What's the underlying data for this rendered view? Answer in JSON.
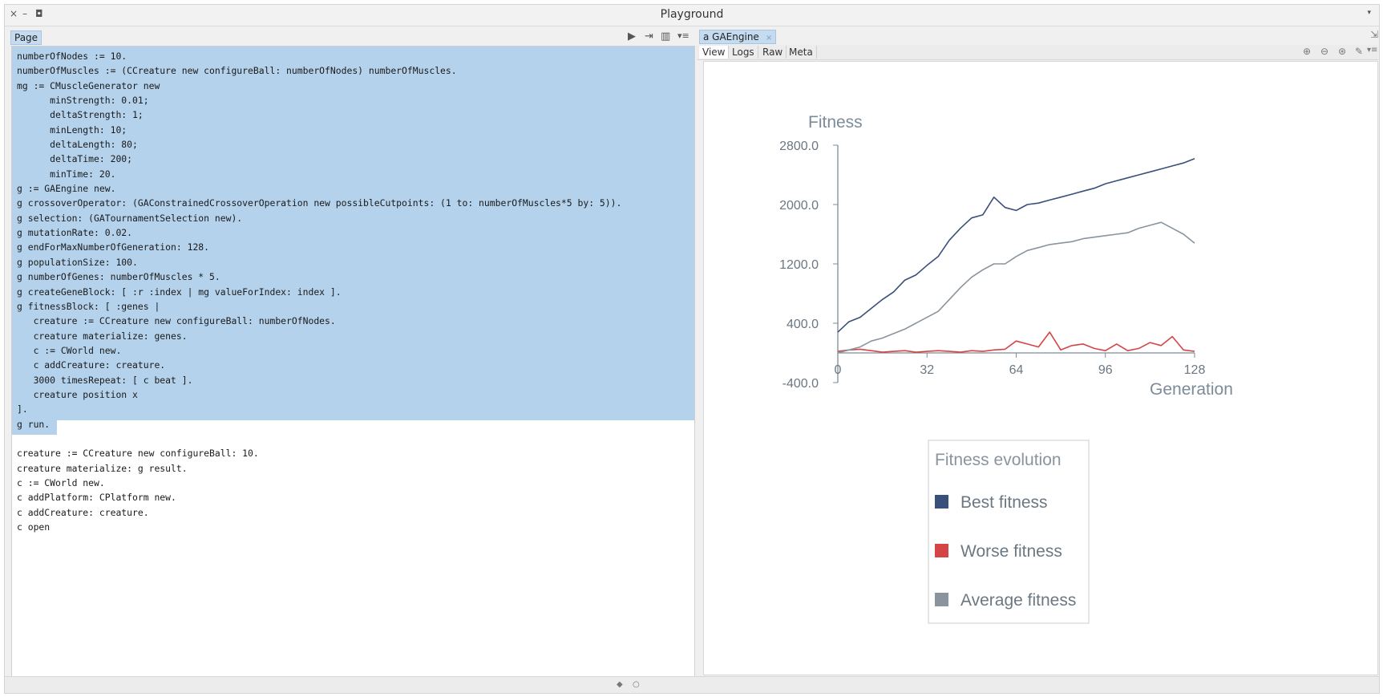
{
  "window": {
    "title": "Playground",
    "close": "×",
    "minimize": "–",
    "maximize": "◘",
    "menu": "▾"
  },
  "left": {
    "tab": "Page"
  },
  "toolbar": {
    "run": "▶",
    "doit": "⇥",
    "split": "▥",
    "menu": "▾≡"
  },
  "code": [
    "numberOfNodes := 10.",
    "numberOfMuscles := (CCreature new configureBall: numberOfNodes) numberOfMuscles.",
    "mg := CMuscleGenerator new",
    "      minStrength: 0.01;",
    "      deltaStrength: 1;",
    "      minLength: 10;",
    "      deltaLength: 80;",
    "      deltaTime: 200;",
    "      minTime: 20.",
    "g := GAEngine new.",
    "g crossoverOperator: (GAConstrainedCrossoverOperation new possibleCutpoints: (1 to: numberOfMuscles*5 by: 5)).",
    "g selection: (GATournamentSelection new).",
    "g mutationRate: 0.02.",
    "g endForMaxNumberOfGeneration: 128.",
    "g populationSize: 100.",
    "g numberOfGenes: numberOfMuscles * 5.",
    "g createGeneBlock: [ :r :index | mg valueForIndex: index ].",
    "g fitnessBlock: [ :genes |",
    "   creature := CCreature new configureBall: numberOfNodes.",
    "   creature materialize: genes.",
    "   c := CWorld new.",
    "   c addCreature: creature.",
    "   3000 timesRepeat: [ c beat ].",
    "   creature position x",
    "].",
    "g run.",
    "",
    "creature := CCreature new configureBall: 10.",
    "creature materialize: g result.",
    "c := CWorld new.",
    "c addPlatform: CPlatform new.",
    "c addCreature: creature.",
    "c open"
  ],
  "inspector": {
    "title": "a GAEngine",
    "close": "×",
    "tabs": [
      "View",
      "Logs",
      "Raw",
      "Meta"
    ],
    "icons": [
      "⊕",
      "⊖",
      "⊛",
      "✎",
      "▾≡"
    ],
    "corner_icon": "⇲"
  },
  "status": {
    "dot1": "◆",
    "dot2": "○"
  },
  "colors": {
    "best": "#3a4f7a",
    "worse": "#d64545",
    "average": "#8a949e",
    "selection": "#b4d2ec"
  },
  "chart_data": {
    "type": "line",
    "ylabel": "Fitness",
    "xlabel": "Generation",
    "xlim": [
      0,
      128
    ],
    "ylim": [
      -400,
      2800
    ],
    "xticks": [
      "0",
      "32",
      "64",
      "96",
      "128"
    ],
    "yticks": [
      "2800.0",
      "2000.0",
      "1200.0",
      "400.0",
      "-400.0"
    ],
    "x": [
      0,
      4,
      8,
      12,
      16,
      20,
      24,
      28,
      32,
      36,
      40,
      44,
      48,
      52,
      56,
      60,
      64,
      68,
      72,
      76,
      80,
      84,
      88,
      92,
      96,
      100,
      104,
      108,
      112,
      116,
      120,
      124,
      128
    ],
    "legend_title": "Fitness evolution",
    "series": [
      {
        "name": "Best fitness",
        "color": "#3a4f7a",
        "values": [
          280,
          420,
          480,
          600,
          720,
          820,
          980,
          1050,
          1180,
          1300,
          1520,
          1680,
          1820,
          1860,
          2100,
          1960,
          1920,
          2000,
          2020,
          2060,
          2100,
          2140,
          2180,
          2220,
          2280,
          2320,
          2360,
          2400,
          2440,
          2480,
          2520,
          2560,
          2620
        ]
      },
      {
        "name": "Worse fitness",
        "color": "#d64545",
        "values": [
          20,
          40,
          50,
          30,
          10,
          20,
          30,
          10,
          20,
          30,
          20,
          10,
          30,
          20,
          40,
          50,
          160,
          120,
          80,
          280,
          40,
          100,
          120,
          60,
          30,
          120,
          30,
          60,
          140,
          100,
          220,
          40,
          20
        ]
      },
      {
        "name": "Average fitness",
        "color": "#8a949e",
        "values": [
          0,
          40,
          80,
          160,
          200,
          260,
          320,
          400,
          480,
          560,
          720,
          880,
          1020,
          1120,
          1200,
          1200,
          1300,
          1380,
          1420,
          1460,
          1480,
          1500,
          1540,
          1560,
          1580,
          1600,
          1620,
          1680,
          1720,
          1760,
          1680,
          1600,
          1480
        ]
      }
    ]
  }
}
